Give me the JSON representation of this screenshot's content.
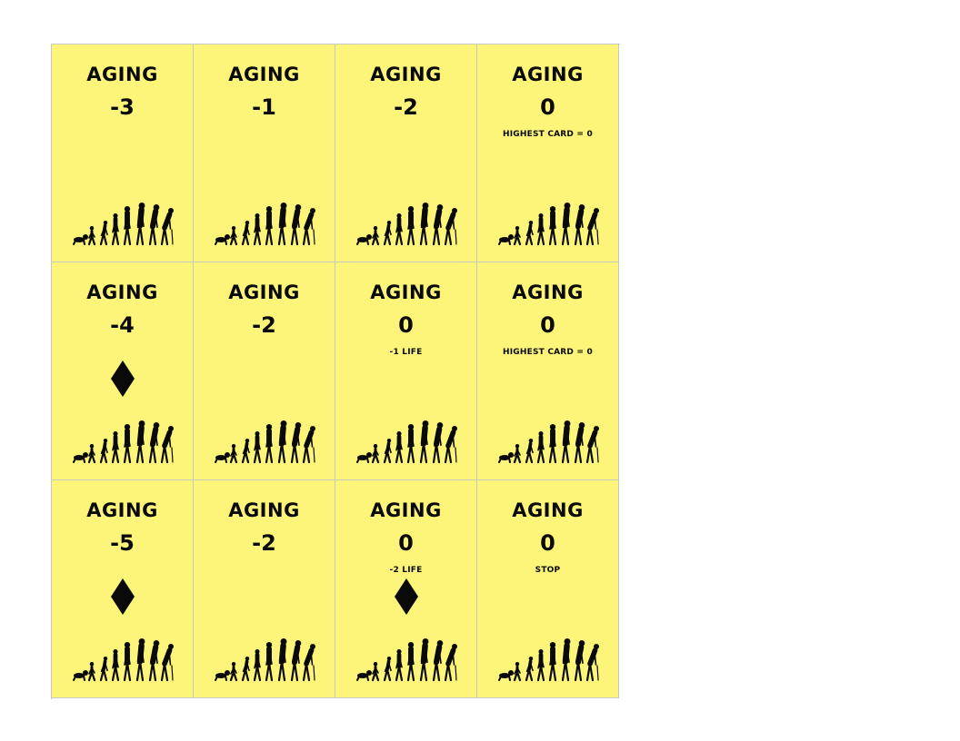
{
  "colors": {
    "card_background": "#fdf57a",
    "ink": "#0a0a0a",
    "cut_line": "#c8c8c8"
  },
  "icons": {
    "aging": "human-aging-silhouettes-icon",
    "diamond": "diamond-icon"
  },
  "cards": [
    {
      "title": "AGING",
      "value": "-3",
      "note": "",
      "diamond": false
    },
    {
      "title": "AGING",
      "value": "-1",
      "note": "",
      "diamond": false
    },
    {
      "title": "AGING",
      "value": "-2",
      "note": "",
      "diamond": false
    },
    {
      "title": "AGING",
      "value": "0",
      "note": "HIGHEST CARD = 0",
      "diamond": false
    },
    {
      "title": "AGING",
      "value": "-4",
      "note": "",
      "diamond": true
    },
    {
      "title": "AGING",
      "value": "-2",
      "note": "",
      "diamond": false
    },
    {
      "title": "AGING",
      "value": "0",
      "note": "-1 LIFE",
      "diamond": false
    },
    {
      "title": "AGING",
      "value": "0",
      "note": "HIGHEST CARD = 0",
      "diamond": false
    },
    {
      "title": "AGING",
      "value": "-5",
      "note": "",
      "diamond": true
    },
    {
      "title": "AGING",
      "value": "-2",
      "note": "",
      "diamond": false
    },
    {
      "title": "AGING",
      "value": "0",
      "note": "-2 LIFE",
      "diamond": true
    },
    {
      "title": "AGING",
      "value": "0",
      "note": "STOP",
      "diamond": false
    }
  ]
}
